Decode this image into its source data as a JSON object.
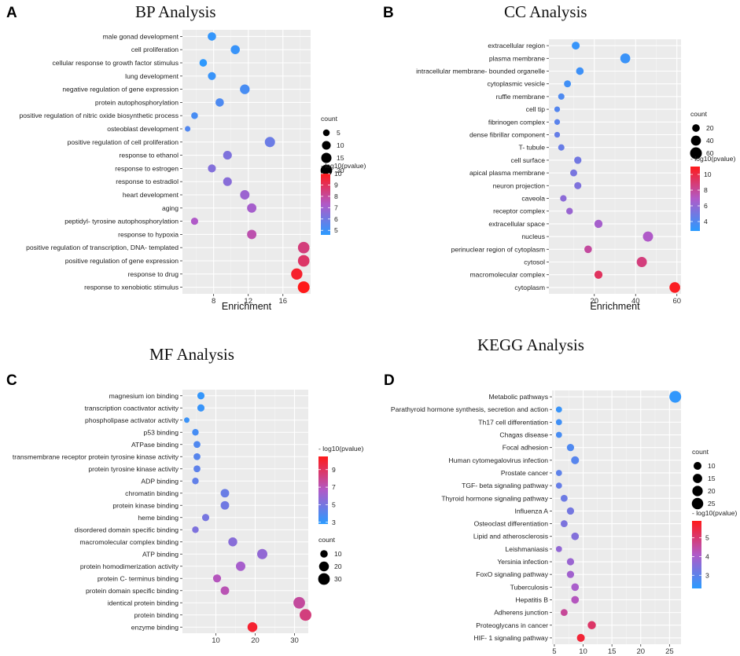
{
  "figure": {
    "colors": {
      "low": "#3d8fef",
      "mid": "#a55fd1",
      "high": "#ff1f1f",
      "panel_bg": "#ebebeb",
      "grid": "#ffffff"
    }
  },
  "chart_data": [
    {
      "type": "scatter",
      "panel_letter": "A",
      "title": "BP  Analysis",
      "xlabel": "Enrichment",
      "ylabel": "",
      "xlim": [
        4.4,
        19.2
      ],
      "xticks": [
        8,
        12,
        16
      ],
      "minor_xticks": [
        6,
        10,
        14,
        18
      ],
      "size_legend": {
        "title": "count",
        "values": [
          5,
          10,
          15,
          20
        ]
      },
      "color_legend": {
        "title": "- log10(pvalue)",
        "min": 4.6,
        "max": 10,
        "ticks": [
          5,
          6,
          7,
          8,
          9,
          10
        ]
      },
      "points": [
        {
          "term": "male gonad development",
          "x": 7.8,
          "count": 9,
          "pvalue_log": 4.8
        },
        {
          "term": "cell proliferation",
          "x": 10.5,
          "count": 11,
          "pvalue_log": 4.9
        },
        {
          "term": "cellular response to growth factor stimulus",
          "x": 6.8,
          "count": 7,
          "pvalue_log": 4.7
        },
        {
          "term": "lung development",
          "x": 7.8,
          "count": 8,
          "pvalue_log": 4.9
        },
        {
          "term": "negative regulation of gene expression",
          "x": 11.6,
          "count": 13,
          "pvalue_log": 5.2
        },
        {
          "term": "protein autophosphorylation",
          "x": 8.7,
          "count": 9,
          "pvalue_log": 5.3
        },
        {
          "term": "positive regulation of nitric oxide biosynthetic process",
          "x": 5.8,
          "count": 5,
          "pvalue_log": 5.2
        },
        {
          "term": "osteoblast development",
          "x": 5.0,
          "count": 3,
          "pvalue_log": 5.4
        },
        {
          "term": "positive regulation of cell proliferation",
          "x": 14.5,
          "count": 15,
          "pvalue_log": 5.9
        },
        {
          "term": "response to ethanol",
          "x": 9.6,
          "count": 10,
          "pvalue_log": 6.3
        },
        {
          "term": "response to estrogen",
          "x": 7.8,
          "count": 8,
          "pvalue_log": 6.4
        },
        {
          "term": "response to estradiol",
          "x": 9.6,
          "count": 10,
          "pvalue_log": 6.5
        },
        {
          "term": "heart development",
          "x": 11.6,
          "count": 12,
          "pvalue_log": 6.9
        },
        {
          "term": "aging",
          "x": 12.4,
          "count": 12,
          "pvalue_log": 7.1
        },
        {
          "term": "peptidyl- tyrosine autophosphorylation",
          "x": 5.8,
          "count": 6,
          "pvalue_log": 7.3
        },
        {
          "term": "response to hypoxia",
          "x": 12.4,
          "count": 12,
          "pvalue_log": 7.7
        },
        {
          "term": "positive regulation of transcription, DNA- templated",
          "x": 18.4,
          "count": 20,
          "pvalue_log": 8.5
        },
        {
          "term": "positive regulation of gene expression",
          "x": 18.4,
          "count": 20,
          "pvalue_log": 8.8
        },
        {
          "term": "response to drug",
          "x": 17.6,
          "count": 19,
          "pvalue_log": 9.7
        },
        {
          "term": "response to xenobiotic stimulus",
          "x": 18.4,
          "count": 21,
          "pvalue_log": 10.0
        }
      ]
    },
    {
      "type": "scatter",
      "panel_letter": "B",
      "title": "CC Analysis",
      "xlabel": "Enrichment",
      "ylabel": "",
      "xlim": [
        -2,
        62
      ],
      "xticks": [
        20,
        40,
        60
      ],
      "minor_xticks": [
        10,
        30,
        50
      ],
      "size_legend": {
        "title": "count",
        "values": [
          20,
          40,
          60
        ]
      },
      "color_legend": {
        "title": "- log10(pvalue)",
        "min": 2.8,
        "max": 11,
        "ticks": [
          4,
          6,
          8,
          10
        ]
      },
      "points": [
        {
          "term": "extracellular region",
          "x": 11,
          "count": 22,
          "pvalue_log": 3.2
        },
        {
          "term": "plasma membrane",
          "x": 35,
          "count": 40,
          "pvalue_log": 3.3
        },
        {
          "term": "intracellular membrane- bounded organelle",
          "x": 13,
          "count": 20,
          "pvalue_log": 3.4
        },
        {
          "term": "cytoplasmic vesicle",
          "x": 7,
          "count": 16,
          "pvalue_log": 3.5
        },
        {
          "term": "ruffle membrane",
          "x": 4,
          "count": 12,
          "pvalue_log": 3.9
        },
        {
          "term": "cell tip",
          "x": 2,
          "count": 9,
          "pvalue_log": 4.1
        },
        {
          "term": "fibrinogen complex",
          "x": 2,
          "count": 9,
          "pvalue_log": 4.3
        },
        {
          "term": "dense fibrillar component",
          "x": 2,
          "count": 9,
          "pvalue_log": 4.6
        },
        {
          "term": "T- tubule",
          "x": 4,
          "count": 12,
          "pvalue_log": 4.7
        },
        {
          "term": "cell surface",
          "x": 12,
          "count": 18,
          "pvalue_log": 5.0
        },
        {
          "term": "apical plasma membrane",
          "x": 10,
          "count": 16,
          "pvalue_log": 5.2
        },
        {
          "term": "neuron projection",
          "x": 12,
          "count": 17,
          "pvalue_log": 5.4
        },
        {
          "term": "caveola",
          "x": 5,
          "count": 13,
          "pvalue_log": 5.8
        },
        {
          "term": "receptor complex",
          "x": 8,
          "count": 14,
          "pvalue_log": 6.2
        },
        {
          "term": "extracellular space",
          "x": 22,
          "count": 24,
          "pvalue_log": 6.6
        },
        {
          "term": "nucleus",
          "x": 46,
          "count": 42,
          "pvalue_log": 6.9
        },
        {
          "term": "perinuclear region of cytoplasm",
          "x": 17,
          "count": 20,
          "pvalue_log": 7.9
        },
        {
          "term": "cytosol",
          "x": 43,
          "count": 42,
          "pvalue_log": 8.7
        },
        {
          "term": "macromolecular complex",
          "x": 22,
          "count": 24,
          "pvalue_log": 9.4
        },
        {
          "term": "cytoplasm",
          "x": 59,
          "count": 48,
          "pvalue_log": 10.8
        }
      ]
    },
    {
      "type": "scatter",
      "panel_letter": "C",
      "title": "MF Analysis",
      "xlabel": "",
      "ylabel": "",
      "xlim": [
        1.5,
        33.5
      ],
      "xticks": [
        10,
        20,
        30
      ],
      "minor_xticks": [
        5,
        15,
        25
      ],
      "size_legend": {
        "title": "count",
        "values": [
          10,
          20,
          30
        ]
      },
      "color_legend": {
        "title": "- log10(pvalue)",
        "min": 2.8,
        "max": 10.5,
        "ticks": [
          3,
          5,
          7,
          9
        ]
      },
      "points": [
        {
          "term": "magnesium ion binding",
          "x": 6.2,
          "count": 9,
          "pvalue_log": 3.1
        },
        {
          "term": "transcription coactivator activity",
          "x": 6.2,
          "count": 9,
          "pvalue_log": 3.2
        },
        {
          "term": "phospholipase activator activity",
          "x": 2.6,
          "count": 4,
          "pvalue_log": 3.3
        },
        {
          "term": "p53 binding",
          "x": 4.8,
          "count": 7,
          "pvalue_log": 3.6
        },
        {
          "term": "ATPase binding",
          "x": 5.2,
          "count": 8,
          "pvalue_log": 3.9
        },
        {
          "term": "transmembrane receptor protein tyrosine kinase activity",
          "x": 5.2,
          "count": 8,
          "pvalue_log": 4.1
        },
        {
          "term": "protein tyrosine kinase activity",
          "x": 5.2,
          "count": 8,
          "pvalue_log": 4.3
        },
        {
          "term": "ADP binding",
          "x": 4.8,
          "count": 7,
          "pvalue_log": 4.4
        },
        {
          "term": "chromatin binding",
          "x": 12.3,
          "count": 14,
          "pvalue_log": 4.6
        },
        {
          "term": "protein kinase binding",
          "x": 12.3,
          "count": 14,
          "pvalue_log": 4.8
        },
        {
          "term": "heme binding",
          "x": 7.4,
          "count": 9,
          "pvalue_log": 5.0
        },
        {
          "term": "disordered domain specific binding",
          "x": 4.8,
          "count": 7,
          "pvalue_log": 5.2
        },
        {
          "term": "macromolecular complex binding",
          "x": 14.3,
          "count": 16,
          "pvalue_log": 5.5
        },
        {
          "term": "ATP binding",
          "x": 21.8,
          "count": 22,
          "pvalue_log": 5.8
        },
        {
          "term": "protein homodimerization activity",
          "x": 16.3,
          "count": 18,
          "pvalue_log": 6.4
        },
        {
          "term": "protein C- terminus binding",
          "x": 10.3,
          "count": 12,
          "pvalue_log": 6.9
        },
        {
          "term": "protein domain specific binding",
          "x": 12.3,
          "count": 14,
          "pvalue_log": 7.1
        },
        {
          "term": "identical protein binding",
          "x": 31.2,
          "count": 30,
          "pvalue_log": 7.6
        },
        {
          "term": "protein binding",
          "x": 32.8,
          "count": 31,
          "pvalue_log": 8.3
        },
        {
          "term": "enzyme binding",
          "x": 19.3,
          "count": 20,
          "pvalue_log": 10.0
        }
      ]
    },
    {
      "type": "scatter",
      "panel_letter": "D",
      "title": "KEGG Analysis",
      "xlabel": "",
      "ylabel": "",
      "xlim": [
        4.6,
        27
      ],
      "xticks": [
        5,
        10,
        15,
        20,
        25
      ],
      "minor_xticks": [
        7.5,
        12.5,
        17.5,
        22.5
      ],
      "size_legend": {
        "title": "count",
        "values": [
          10,
          15,
          20,
          25
        ]
      },
      "color_legend": {
        "title": "- log10(pvalue)",
        "min": 2.3,
        "max": 5.9,
        "ticks": [
          3,
          4,
          5
        ]
      },
      "points": [
        {
          "term": "Metabolic pathways",
          "x": 26,
          "count": 27,
          "pvalue_log": 2.4
        },
        {
          "term": "Parathyroid hormone synthesis, secretion and action",
          "x": 5.8,
          "count": 5,
          "pvalue_log": 2.5
        },
        {
          "term": "Th17 cell differentiation",
          "x": 5.8,
          "count": 5,
          "pvalue_log": 2.6
        },
        {
          "term": "Chagas disease",
          "x": 5.8,
          "count": 5,
          "pvalue_log": 2.7
        },
        {
          "term": "Focal adhesion",
          "x": 7.8,
          "count": 8,
          "pvalue_log": 2.8
        },
        {
          "term": "Human cytomegalovirus infection",
          "x": 8.6,
          "count": 10,
          "pvalue_log": 2.9
        },
        {
          "term": "Prostate cancer",
          "x": 5.8,
          "count": 5,
          "pvalue_log": 3.0
        },
        {
          "term": "TGF- beta signaling pathway",
          "x": 5.8,
          "count": 5,
          "pvalue_log": 3.1
        },
        {
          "term": "Thyroid hormone signaling pathway",
          "x": 6.7,
          "count": 7,
          "pvalue_log": 3.2
        },
        {
          "term": "Influenza A",
          "x": 7.8,
          "count": 8,
          "pvalue_log": 3.3
        },
        {
          "term": "Osteoclast differentiation",
          "x": 6.7,
          "count": 7,
          "pvalue_log": 3.4
        },
        {
          "term": "Lipid and atherosclerosis",
          "x": 8.6,
          "count": 9,
          "pvalue_log": 3.5
        },
        {
          "term": "Leishmaniasis",
          "x": 5.8,
          "count": 5,
          "pvalue_log": 3.7
        },
        {
          "term": "Yersinia infection",
          "x": 7.8,
          "count": 8,
          "pvalue_log": 3.8
        },
        {
          "term": "FoxO signaling pathway",
          "x": 7.8,
          "count": 8,
          "pvalue_log": 3.9
        },
        {
          "term": "Tuberculosis",
          "x": 8.6,
          "count": 9,
          "pvalue_log": 4.0
        },
        {
          "term": "Hepatitis B",
          "x": 8.6,
          "count": 9,
          "pvalue_log": 4.2
        },
        {
          "term": "Adherens junction",
          "x": 6.7,
          "count": 7,
          "pvalue_log": 4.6
        },
        {
          "term": "Proteoglycans in cancer",
          "x": 11.5,
          "count": 11,
          "pvalue_log": 5.1
        },
        {
          "term": "HIF- 1 signaling pathway",
          "x": 9.6,
          "count": 10,
          "pvalue_log": 5.6
        }
      ]
    }
  ]
}
